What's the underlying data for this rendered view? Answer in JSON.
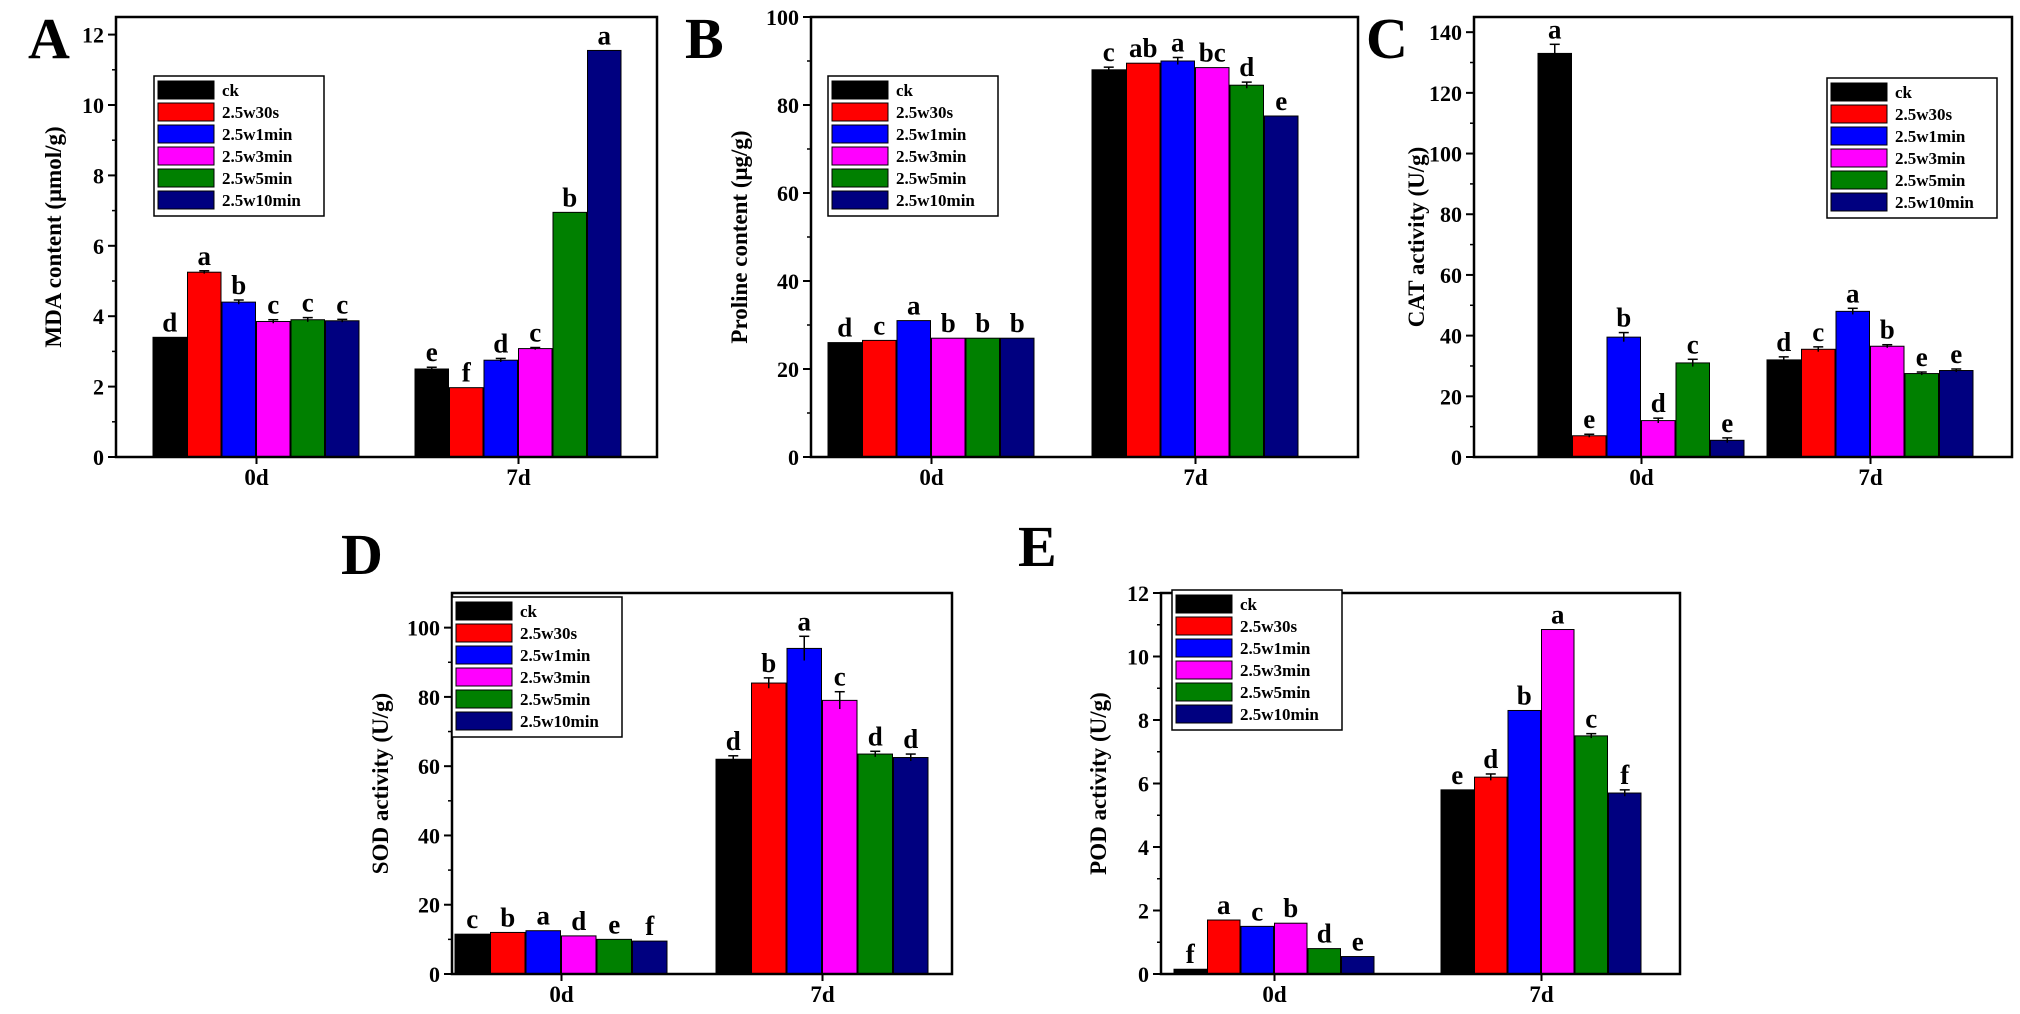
{
  "figure": {
    "series_names": [
      "ck",
      "2.5w30s",
      "2.5w1min",
      "2.5w3min",
      "2.5w5min",
      "2.5w10min"
    ],
    "series_colors": [
      "#000000",
      "#ff0000",
      "#0000ff",
      "#ff00ff",
      "#008000",
      "#000080"
    ]
  },
  "chart_data": [
    {
      "panel": "A",
      "type": "bar",
      "title": "",
      "categories": [
        "0d",
        "7d"
      ],
      "xlabel": "",
      "ylabel": "MDA content (μmol/g)",
      "ylim": [
        0,
        12.5
      ],
      "yticks": [
        0,
        2,
        4,
        6,
        8,
        10,
        12
      ],
      "legend_position": "top-left",
      "series": [
        {
          "name": "ck",
          "values": [
            3.4,
            2.5
          ],
          "errors": [
            0,
            0.05
          ],
          "labels": [
            "d",
            "e"
          ]
        },
        {
          "name": "2.5w30s",
          "values": [
            5.25,
            1.97
          ],
          "errors": [
            0.04,
            0
          ],
          "labels": [
            "a",
            "f"
          ]
        },
        {
          "name": "2.5w1min",
          "values": [
            4.4,
            2.75
          ],
          "errors": [
            0.06,
            0.05
          ],
          "labels": [
            "b",
            "d"
          ]
        },
        {
          "name": "2.5w3min",
          "values": [
            3.85,
            3.08
          ],
          "errors": [
            0.05,
            0.03
          ],
          "labels": [
            "c",
            "c"
          ]
        },
        {
          "name": "2.5w5min",
          "values": [
            3.9,
            6.95
          ],
          "errors": [
            0.06,
            0
          ],
          "labels": [
            "c",
            "b"
          ]
        },
        {
          "name": "2.5w10min",
          "values": [
            3.87,
            11.55
          ],
          "errors": [
            0.04,
            0
          ],
          "labels": [
            "c",
            "a"
          ]
        }
      ]
    },
    {
      "panel": "B",
      "type": "bar",
      "title": "",
      "categories": [
        "0d",
        "7d"
      ],
      "xlabel": "",
      "ylabel": "Proline  content (μg/g)",
      "ylim": [
        0,
        100
      ],
      "yticks": [
        0,
        20,
        40,
        60,
        80,
        100
      ],
      "legend_position": "top-left",
      "series": [
        {
          "name": "ck",
          "values": [
            26,
            88
          ],
          "errors": [
            0,
            0.6
          ],
          "labels": [
            "d",
            "c"
          ]
        },
        {
          "name": "2.5w30s",
          "values": [
            26.5,
            89.5
          ],
          "errors": [
            0,
            0
          ],
          "labels": [
            "c",
            "ab"
          ]
        },
        {
          "name": "2.5w1min",
          "values": [
            31,
            90
          ],
          "errors": [
            0,
            0.8
          ],
          "labels": [
            "a",
            "a"
          ]
        },
        {
          "name": "2.5w3min",
          "values": [
            27,
            88.5
          ],
          "errors": [
            0,
            0
          ],
          "labels": [
            "b",
            "bc"
          ]
        },
        {
          "name": "2.5w5min",
          "values": [
            27,
            84.5
          ],
          "errors": [
            0,
            0.7
          ],
          "labels": [
            "b",
            "d"
          ]
        },
        {
          "name": "2.5w10min",
          "values": [
            27,
            77.5
          ],
          "errors": [
            0,
            0
          ],
          "labels": [
            "b",
            "e"
          ]
        }
      ]
    },
    {
      "panel": "C",
      "type": "bar",
      "title": "",
      "categories": [
        "0d",
        "7d"
      ],
      "xlabel": "",
      "ylabel": "CAT activity (U/g)",
      "ylim": [
        0,
        145
      ],
      "yticks": [
        0,
        20,
        40,
        60,
        80,
        100,
        120,
        140
      ],
      "legend_position": "top-right",
      "series": [
        {
          "name": "ck",
          "values": [
            133,
            32
          ],
          "errors": [
            3,
            1
          ],
          "labels": [
            "a",
            "d"
          ]
        },
        {
          "name": "2.5w30s",
          "values": [
            7,
            35.5
          ],
          "errors": [
            0.5,
            0.8
          ],
          "labels": [
            "e",
            "c"
          ]
        },
        {
          "name": "2.5w1min",
          "values": [
            39.5,
            48
          ],
          "errors": [
            1.5,
            1
          ],
          "labels": [
            "b",
            "a"
          ]
        },
        {
          "name": "2.5w3min",
          "values": [
            12,
            36.5
          ],
          "errors": [
            0.8,
            0.5
          ],
          "labels": [
            "d",
            "b"
          ]
        },
        {
          "name": "2.5w5min",
          "values": [
            31,
            27.5
          ],
          "errors": [
            1.2,
            0.5
          ],
          "labels": [
            "c",
            "e"
          ]
        },
        {
          "name": "2.5w10min",
          "values": [
            5.5,
            28.5
          ],
          "errors": [
            0.8,
            0.5
          ],
          "labels": [
            "e",
            "e"
          ]
        }
      ]
    },
    {
      "panel": "D",
      "type": "bar",
      "title": "",
      "categories": [
        "0d",
        "7d"
      ],
      "xlabel": "",
      "ylabel": "SOD activity (U/g)",
      "ylim": [
        0,
        110
      ],
      "yticks": [
        0,
        20,
        40,
        60,
        80,
        100
      ],
      "legend_position": "top-left",
      "series": [
        {
          "name": "ck",
          "values": [
            11.5,
            62
          ],
          "errors": [
            0,
            1
          ],
          "labels": [
            "c",
            "d"
          ]
        },
        {
          "name": "2.5w30s",
          "values": [
            12,
            84
          ],
          "errors": [
            0,
            1.5
          ],
          "labels": [
            "b",
            "b"
          ]
        },
        {
          "name": "2.5w1min",
          "values": [
            12.5,
            94
          ],
          "errors": [
            0,
            3.5
          ],
          "labels": [
            "a",
            "a"
          ]
        },
        {
          "name": "2.5w3min",
          "values": [
            11,
            79
          ],
          "errors": [
            0,
            2.5
          ],
          "labels": [
            "d",
            "c"
          ]
        },
        {
          "name": "2.5w5min",
          "values": [
            10,
            63.5
          ],
          "errors": [
            0,
            0.8
          ],
          "labels": [
            "e",
            "d"
          ]
        },
        {
          "name": "2.5w10min",
          "values": [
            9.5,
            62.5
          ],
          "errors": [
            0,
            1
          ],
          "labels": [
            "f",
            "d"
          ]
        }
      ]
    },
    {
      "panel": "E",
      "type": "bar",
      "title": "",
      "categories": [
        "0d",
        "7d"
      ],
      "xlabel": "",
      "ylabel": "POD activity (U/g)",
      "ylim": [
        0,
        12
      ],
      "yticks": [
        0,
        2,
        4,
        6,
        8,
        10,
        12
      ],
      "legend_position": "top-left",
      "series": [
        {
          "name": "ck",
          "values": [
            0.15,
            5.8
          ],
          "errors": [
            0,
            0
          ],
          "labels": [
            "f",
            "e"
          ]
        },
        {
          "name": "2.5w30s",
          "values": [
            1.7,
            6.2
          ],
          "errors": [
            0,
            0.1
          ],
          "labels": [
            "a",
            "d"
          ]
        },
        {
          "name": "2.5w1min",
          "values": [
            1.5,
            8.3
          ],
          "errors": [
            0,
            0
          ],
          "labels": [
            "c",
            "b"
          ]
        },
        {
          "name": "2.5w3min",
          "values": [
            1.6,
            10.85
          ],
          "errors": [
            0,
            0
          ],
          "labels": [
            "b",
            "a"
          ]
        },
        {
          "name": "2.5w5min",
          "values": [
            0.8,
            7.5
          ],
          "errors": [
            0,
            0.07
          ],
          "labels": [
            "d",
            "c"
          ]
        },
        {
          "name": "2.5w10min",
          "values": [
            0.55,
            5.7
          ],
          "errors": [
            0,
            0.1
          ],
          "labels": [
            "e",
            "f"
          ]
        }
      ]
    }
  ]
}
